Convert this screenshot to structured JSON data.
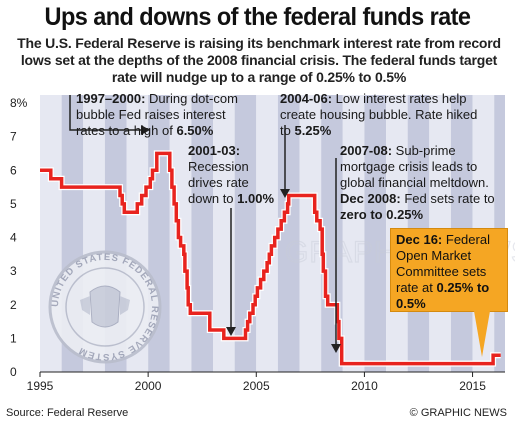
{
  "title": "Ups and downs of the federal funds rate",
  "subtitle": "The U.S. Federal Reserve is raising its benchmark interest rate from record lows set at the depths of the 2008 financial crisis. The federal funds target rate will nudge up to a range of 0.25% to 0.5%",
  "source": "Source: Federal Reserve",
  "credit": "© GRAPHIC NEWS",
  "watermark": "GRAPHIC NEWS",
  "seal_text": "UNITED STATES FEDERAL RESERVE SYSTEM",
  "annotations": {
    "a1_head": "1997–2000:",
    "a1_body": "During dot-com bubble Fed raises interest rates to a high of",
    "a1_value": "6.50%",
    "a2_head": "2001-03:",
    "a2_body": "Recession drives rate down to",
    "a2_value": "1.00%",
    "a3_head": "2004-06:",
    "a3_body": "Low interest rates help create housing bubble. Rate hiked to",
    "a3_value": "5.25%",
    "a4_head": "2007-08:",
    "a4_body": "Sub-prime mortgage crisis leads to global financial meltdown.",
    "a4_head2": "Dec 2008:",
    "a4_body2": "Fed sets rate to",
    "a4_value": "zero to 0.25%",
    "a5_head": "Dec 16:",
    "a5_body": "Federal Open Market Committee sets rate at",
    "a5_value": "0.25% to 0.5%"
  },
  "colors": {
    "line": "#e8231e",
    "bar_light": "#e6e8f2",
    "bar_dark": "#c5c9dd",
    "highlight": "#f5a623"
  },
  "chart_data": {
    "type": "line",
    "title": "Ups and downs of the federal funds rate",
    "xlabel": "",
    "ylabel": "",
    "ylim": [
      0,
      8
    ],
    "xlim": [
      1995,
      2016.5
    ],
    "y_ticks": [
      "0",
      "1",
      "2",
      "3",
      "4",
      "5",
      "6",
      "7",
      "8%"
    ],
    "x_ticks": [
      "1995",
      "2000",
      "2005",
      "2010",
      "2015"
    ],
    "grid": false,
    "series": [
      {
        "points": [
          [
            1995.0,
            6.0
          ],
          [
            1995.5,
            6.0
          ],
          [
            1995.5,
            5.75
          ],
          [
            1996.0,
            5.75
          ],
          [
            1996.0,
            5.5
          ],
          [
            1997.0,
            5.5
          ],
          [
            1997.2,
            5.5
          ],
          [
            1997.2,
            5.5
          ],
          [
            1998.7,
            5.5
          ],
          [
            1998.7,
            5.25
          ],
          [
            1998.8,
            5.25
          ],
          [
            1998.8,
            5.0
          ],
          [
            1998.9,
            5.0
          ],
          [
            1998.9,
            4.75
          ],
          [
            1999.5,
            4.75
          ],
          [
            1999.5,
            5.0
          ],
          [
            1999.7,
            5.0
          ],
          [
            1999.7,
            5.25
          ],
          [
            1999.9,
            5.25
          ],
          [
            1999.9,
            5.5
          ],
          [
            2000.1,
            5.5
          ],
          [
            2000.1,
            5.75
          ],
          [
            2000.2,
            5.75
          ],
          [
            2000.2,
            6.0
          ],
          [
            2000.4,
            6.0
          ],
          [
            2000.4,
            6.5
          ],
          [
            2001.0,
            6.5
          ],
          [
            2001.0,
            6.0
          ],
          [
            2001.1,
            6.0
          ],
          [
            2001.1,
            5.5
          ],
          [
            2001.2,
            5.5
          ],
          [
            2001.2,
            5.0
          ],
          [
            2001.3,
            5.0
          ],
          [
            2001.3,
            4.5
          ],
          [
            2001.4,
            4.5
          ],
          [
            2001.4,
            4.0
          ],
          [
            2001.5,
            4.0
          ],
          [
            2001.5,
            3.75
          ],
          [
            2001.65,
            3.75
          ],
          [
            2001.65,
            3.5
          ],
          [
            2001.7,
            3.5
          ],
          [
            2001.7,
            3.0
          ],
          [
            2001.8,
            3.0
          ],
          [
            2001.8,
            2.5
          ],
          [
            2001.85,
            2.5
          ],
          [
            2001.85,
            2.0
          ],
          [
            2001.95,
            2.0
          ],
          [
            2001.95,
            1.75
          ],
          [
            2002.85,
            1.75
          ],
          [
            2002.85,
            1.25
          ],
          [
            2003.5,
            1.25
          ],
          [
            2003.5,
            1.0
          ],
          [
            2004.5,
            1.0
          ],
          [
            2004.5,
            1.25
          ],
          [
            2004.6,
            1.25
          ],
          [
            2004.6,
            1.5
          ],
          [
            2004.7,
            1.5
          ],
          [
            2004.7,
            1.75
          ],
          [
            2004.85,
            1.75
          ],
          [
            2004.85,
            2.0
          ],
          [
            2004.95,
            2.0
          ],
          [
            2004.95,
            2.25
          ],
          [
            2005.05,
            2.25
          ],
          [
            2005.05,
            2.5
          ],
          [
            2005.2,
            2.5
          ],
          [
            2005.2,
            2.75
          ],
          [
            2005.35,
            2.75
          ],
          [
            2005.35,
            3.0
          ],
          [
            2005.5,
            3.0
          ],
          [
            2005.5,
            3.25
          ],
          [
            2005.6,
            3.25
          ],
          [
            2005.6,
            3.5
          ],
          [
            2005.7,
            3.5
          ],
          [
            2005.7,
            3.75
          ],
          [
            2005.85,
            3.75
          ],
          [
            2005.85,
            4.0
          ],
          [
            2006.0,
            4.0
          ],
          [
            2006.0,
            4.25
          ],
          [
            2006.15,
            4.25
          ],
          [
            2006.15,
            4.5
          ],
          [
            2006.3,
            4.5
          ],
          [
            2006.3,
            4.75
          ],
          [
            2006.45,
            4.75
          ],
          [
            2006.45,
            5.0
          ],
          [
            2006.5,
            5.0
          ],
          [
            2006.5,
            5.25
          ],
          [
            2007.7,
            5.25
          ],
          [
            2007.7,
            4.75
          ],
          [
            2007.8,
            4.75
          ],
          [
            2007.8,
            4.5
          ],
          [
            2007.95,
            4.5
          ],
          [
            2007.95,
            4.25
          ],
          [
            2008.05,
            4.25
          ],
          [
            2008.05,
            3.5
          ],
          [
            2008.1,
            3.5
          ],
          [
            2008.1,
            3.0
          ],
          [
            2008.2,
            3.0
          ],
          [
            2008.2,
            2.25
          ],
          [
            2008.3,
            2.25
          ],
          [
            2008.3,
            2.0
          ],
          [
            2008.75,
            2.0
          ],
          [
            2008.75,
            1.5
          ],
          [
            2008.82,
            1.5
          ],
          [
            2008.82,
            1.0
          ],
          [
            2008.95,
            1.0
          ],
          [
            2008.95,
            0.25
          ],
          [
            2015.95,
            0.25
          ],
          [
            2015.95,
            0.5
          ],
          [
            2016.3,
            0.5
          ]
        ]
      }
    ]
  }
}
